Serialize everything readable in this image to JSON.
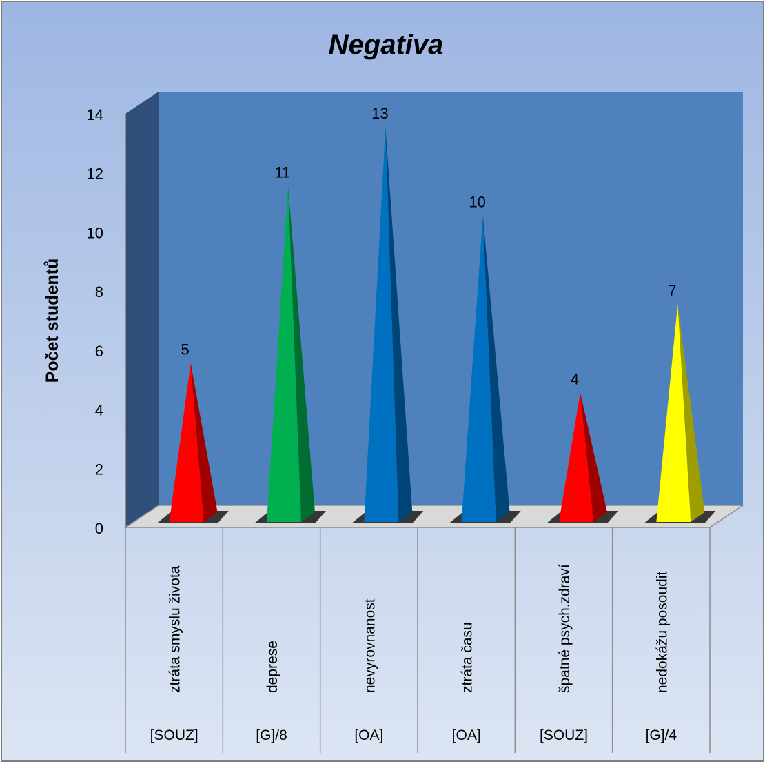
{
  "chart_data": {
    "type": "bar",
    "title": "Negativa",
    "ylabel": "Počet studentů",
    "xlabel": "",
    "ylim": [
      0,
      14
    ],
    "yticks": [
      0,
      2,
      4,
      6,
      8,
      10,
      12,
      14
    ],
    "grid": false,
    "legend": "none",
    "categories": [
      {
        "label": "ztráta smyslu života",
        "group": "[SOUZ]",
        "value": 5,
        "color": "#ff0000"
      },
      {
        "label": "deprese",
        "group": "[G]/8",
        "value": 11,
        "color": "#00b050"
      },
      {
        "label": "nevyrovnanost",
        "group": "[OA]",
        "value": 13,
        "color": "#0070c0"
      },
      {
        "label": "ztráta času",
        "group": "[OA]",
        "value": 10,
        "color": "#0070c0"
      },
      {
        "label": "špatné psych.zdraví",
        "group": "[SOUZ]",
        "value": 4,
        "color": "#ff0000"
      },
      {
        "label": "nedokážu posoudit",
        "group": "[G]/4",
        "value": 7,
        "color": "#ffff00"
      }
    ],
    "colors": {
      "background_top": "#9db6e2",
      "background_bottom": "#dce5f3",
      "plot_wall": "#4f81bd",
      "side_wall": "#2f4f7a"
    }
  }
}
